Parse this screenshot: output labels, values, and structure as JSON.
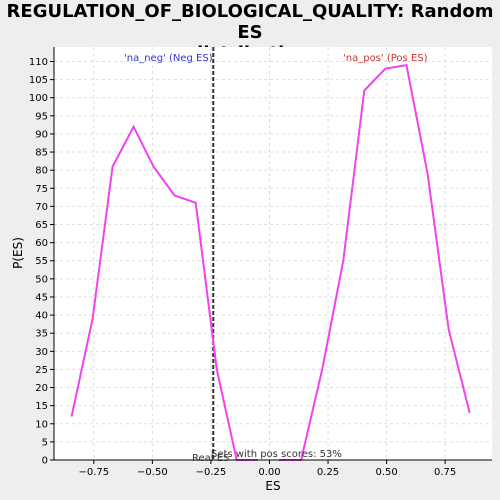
{
  "chart_data": {
    "type": "line",
    "title_line1": "REGULATION_OF_BIOLOGICAL_QUALITY: Random ES",
    "title_line2": "distribution",
    "xlabel": "ES",
    "ylabel": "P(ES)",
    "xlim": [
      -0.92,
      0.95
    ],
    "ylim": [
      0,
      114
    ],
    "x_ticks": [
      -0.75,
      -0.5,
      -0.25,
      0.0,
      0.25,
      0.5,
      0.75
    ],
    "x_tick_labels": [
      "−0.75",
      "−0.50",
      "−0.25",
      "0.00",
      "0.25",
      "0.50",
      "0.75"
    ],
    "y_ticks": [
      0,
      5,
      10,
      15,
      20,
      25,
      30,
      35,
      40,
      45,
      50,
      55,
      60,
      65,
      70,
      75,
      80,
      85,
      90,
      95,
      100,
      105,
      110
    ],
    "grid": true,
    "series": [
      {
        "name": "'na_neg' (Neg ES)",
        "color": "#ee44ee",
        "x": [
          -0.845,
          -0.755,
          -0.67,
          -0.58,
          -0.495,
          -0.405,
          -0.315,
          -0.225,
          -0.14,
          -0.05
        ],
        "y": [
          12,
          39,
          81,
          92,
          81,
          73,
          71,
          25,
          0,
          0
        ]
      },
      {
        "name": "'na_pos' (Pos ES)",
        "color": "#ee44ee",
        "x": [
          0.04,
          0.135,
          0.225,
          0.315,
          0.405,
          0.495,
          0.585,
          0.675,
          0.765,
          0.855
        ],
        "y": [
          0,
          0,
          25,
          55,
          102,
          108,
          109,
          79,
          36,
          13
        ]
      }
    ],
    "legend_neg": {
      "text": "'na_neg' (Neg ES)",
      "color": "#3333cc"
    },
    "legend_pos": {
      "text": "'na_pos' (Pos ES)",
      "color": "#cc3333"
    },
    "real_es": {
      "x": -0.24,
      "label": "Real ES",
      "color": "#333333"
    },
    "annotation": "Sets with pos scores: 53%"
  }
}
